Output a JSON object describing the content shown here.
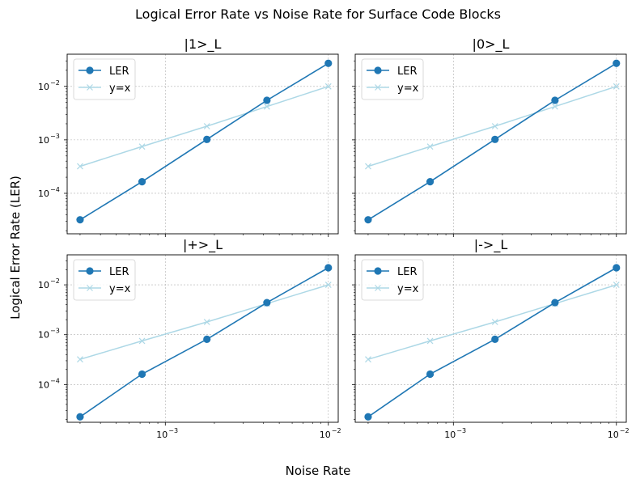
{
  "figure": {
    "title": "Logical Error Rate vs Noise Rate for Surface Code Blocks",
    "xlabel": "Noise Rate",
    "ylabel": "Logical Error Rate (LER)"
  },
  "colors": {
    "ler": "#1f77b4",
    "identity": "#add8e6",
    "grid": "#b0b0b0"
  },
  "chart_data": [
    {
      "type": "line",
      "title": "|1>_L",
      "xscale": "log",
      "yscale": "log",
      "xlim": [
        0.00025,
        0.0115
      ],
      "ylim": [
        1.75e-05,
        0.04
      ],
      "legend_position": "upper-left",
      "series": [
        {
          "name": "LER",
          "x": [
            0.0003,
            0.00072,
            0.0018,
            0.0042,
            0.01
          ],
          "y": [
            3.2e-05,
            0.000165,
            0.00102,
            0.0055,
            0.027
          ]
        },
        {
          "name": "y=x",
          "x": [
            0.0003,
            0.00072,
            0.0018,
            0.0042,
            0.01
          ],
          "y": [
            0.00032,
            0.00075,
            0.0018,
            0.0042,
            0.01
          ]
        }
      ]
    },
    {
      "type": "line",
      "title": "|0>_L",
      "xscale": "log",
      "yscale": "log",
      "xlim": [
        0.00025,
        0.0115
      ],
      "ylim": [
        1.75e-05,
        0.04
      ],
      "legend_position": "upper-left",
      "series": [
        {
          "name": "LER",
          "x": [
            0.0003,
            0.00072,
            0.0018,
            0.0042,
            0.01
          ],
          "y": [
            3.2e-05,
            0.000165,
            0.00102,
            0.0055,
            0.027
          ]
        },
        {
          "name": "y=x",
          "x": [
            0.0003,
            0.00072,
            0.0018,
            0.0042,
            0.01
          ],
          "y": [
            0.00032,
            0.00075,
            0.0018,
            0.0042,
            0.01
          ]
        }
      ]
    },
    {
      "type": "line",
      "title": "|+>_L",
      "xscale": "log",
      "yscale": "log",
      "xlim": [
        0.00025,
        0.0115
      ],
      "ylim": [
        1.75e-05,
        0.04
      ],
      "legend_position": "upper-left",
      "series": [
        {
          "name": "LER",
          "x": [
            0.0003,
            0.00072,
            0.0018,
            0.0042,
            0.01
          ],
          "y": [
            2.25e-05,
            0.000162,
            0.00081,
            0.0044,
            0.022
          ]
        },
        {
          "name": "y=x",
          "x": [
            0.0003,
            0.00072,
            0.0018,
            0.0042,
            0.01
          ],
          "y": [
            0.00032,
            0.00075,
            0.0018,
            0.0042,
            0.01
          ]
        }
      ]
    },
    {
      "type": "line",
      "title": "|->_L",
      "xscale": "log",
      "yscale": "log",
      "xlim": [
        0.00025,
        0.0115
      ],
      "ylim": [
        1.75e-05,
        0.04
      ],
      "legend_position": "upper-left",
      "series": [
        {
          "name": "LER",
          "x": [
            0.0003,
            0.00072,
            0.0018,
            0.0042,
            0.01
          ],
          "y": [
            2.25e-05,
            0.000162,
            0.00081,
            0.0044,
            0.022
          ]
        },
        {
          "name": "y=x",
          "x": [
            0.0003,
            0.00072,
            0.0018,
            0.0042,
            0.01
          ],
          "y": [
            0.00032,
            0.00075,
            0.0018,
            0.0042,
            0.01
          ]
        }
      ]
    }
  ],
  "ticks": {
    "x": [
      {
        "value": 0.001,
        "base": "10",
        "exp": "−3"
      },
      {
        "value": 0.01,
        "base": "10",
        "exp": "−2"
      }
    ],
    "y": [
      {
        "value": 0.0001,
        "base": "10",
        "exp": "−4"
      },
      {
        "value": 0.001,
        "base": "10",
        "exp": "−3"
      },
      {
        "value": 0.01,
        "base": "10",
        "exp": "−2"
      }
    ]
  }
}
